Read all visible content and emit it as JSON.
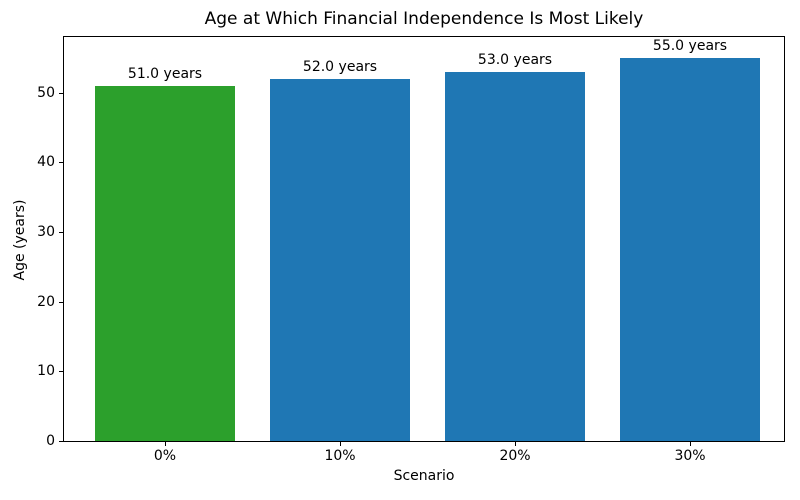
{
  "chart_data": {
    "type": "bar",
    "title": "Age at Which Financial Independence Is Most Likely",
    "xlabel": "Scenario",
    "ylabel": "Age (years)",
    "categories": [
      "0%",
      "10%",
      "20%",
      "30%"
    ],
    "values": [
      51.0,
      52.0,
      53.0,
      55.0
    ],
    "bar_labels": [
      "51.0 years",
      "52.0 years",
      "53.0 years",
      "55.0 years"
    ],
    "bar_colors": [
      "#2ca02c",
      "#1f77b4",
      "#1f77b4",
      "#1f77b4"
    ],
    "yticks": [
      0,
      10,
      20,
      30,
      40,
      50
    ],
    "ylim": [
      0,
      58
    ],
    "grid": false,
    "legend_position": "none",
    "background_color": "#ffffff",
    "text_color": "#000000"
  }
}
